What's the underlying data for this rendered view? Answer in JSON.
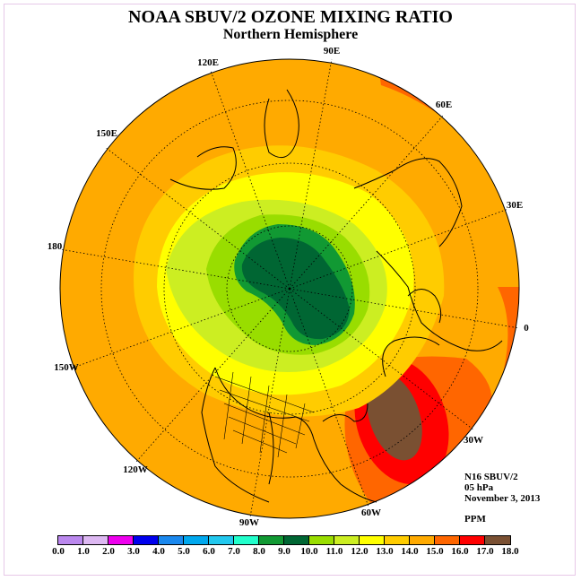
{
  "title": "NOAA SBUV/2 OZONE MIXING RATIO",
  "subtitle": "Northern Hemisphere",
  "longitude_labels": [
    "120E",
    "90E",
    "60E",
    "150E",
    "30E",
    "180",
    "0",
    "150W",
    "30W",
    "120W",
    "60W",
    "90W"
  ],
  "info": {
    "instrument": "N16 SBUV/2",
    "level": "05 hPa",
    "date": "November 3, 2013",
    "units": "PPM"
  },
  "colorbar": {
    "ticks": [
      "0.0",
      "1.0",
      "2.0",
      "3.0",
      "4.0",
      "5.0",
      "6.0",
      "7.0",
      "8.0",
      "9.0",
      "10.0",
      "11.0",
      "12.0",
      "13.0",
      "14.0",
      "15.0",
      "16.0",
      "17.0",
      "18.0"
    ],
    "colors": [
      "#bb88ee",
      "#ddb8f2",
      "#ee00ee",
      "#0000ee",
      "#1a88ee",
      "#00a8ee",
      "#22c8ee",
      "#22ffcc",
      "#119933",
      "#006633",
      "#99dd00",
      "#ccee22",
      "#ffff00",
      "#ffcc00",
      "#ffaa00",
      "#ff6600",
      "#ff0000",
      "#7a5032"
    ]
  }
}
